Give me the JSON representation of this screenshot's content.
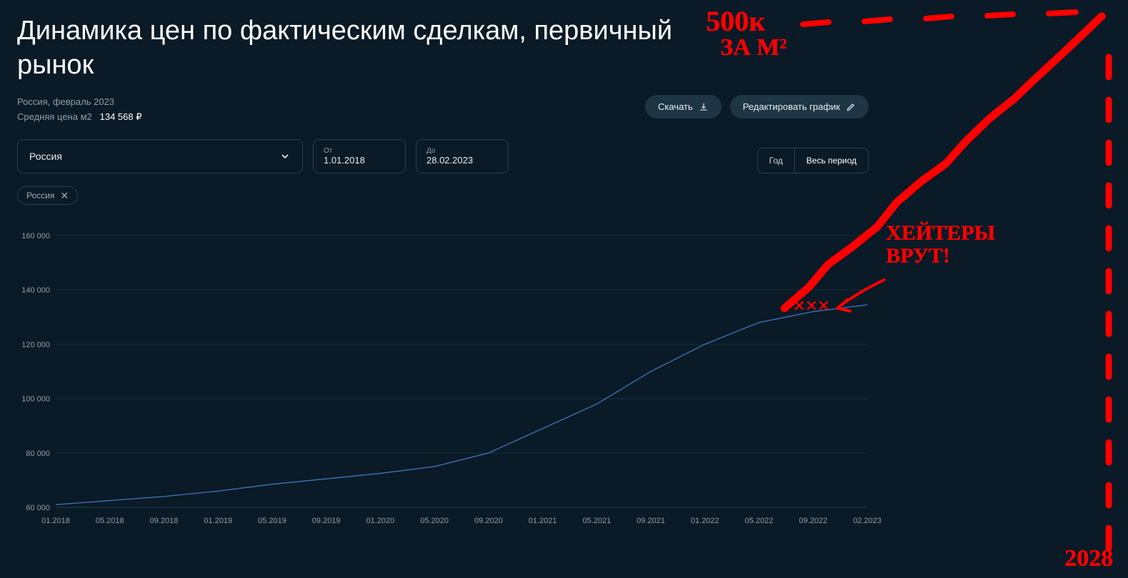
{
  "header": {
    "title": "Динамика цен по фактическим сделкам, первичный рынок",
    "region_line": "Россия, февраль 2023",
    "price_label": "Средняя цена м2",
    "price_value": "134 568 ₽"
  },
  "buttons": {
    "download": "Скачать",
    "edit_chart": "Редактировать график"
  },
  "controls": {
    "region_select": "Россия",
    "date_from_label": "От",
    "date_from": "1.01.2018",
    "date_to_label": "До",
    "date_to": "28.02.2023",
    "seg_year": "Год",
    "seg_all": "Весь период",
    "chip_region": "Россия"
  },
  "chart": {
    "type": "line",
    "background_color": "#0a1a26",
    "grid_color": "#1a2e3c",
    "axis_label_color": "#8aa0b2",
    "axis_fontsize": 11,
    "line_color": "#3b6fb8",
    "line_width": 1.4,
    "ylim": [
      60000,
      165000
    ],
    "yticks": [
      60000,
      80000,
      100000,
      120000,
      140000,
      160000
    ],
    "ytick_labels": [
      "60 000",
      "80 000",
      "100 000",
      "120 000",
      "140 000",
      "160 000"
    ],
    "xtick_labels": [
      "01.2018",
      "05.2018",
      "09.2018",
      "01.2019",
      "05.2019",
      "09.2019",
      "01.2020",
      "05.2020",
      "09.2020",
      "01.2021",
      "05.2021",
      "09.2021",
      "01.2022",
      "05.2022",
      "09.2022",
      "02.2023"
    ],
    "series": {
      "x_index": [
        0,
        1,
        2,
        3,
        4,
        5,
        6,
        7,
        8,
        9,
        10,
        11,
        12,
        13,
        14,
        15
      ],
      "y": [
        61000,
        62500,
        64000,
        66000,
        68500,
        70500,
        72500,
        75000,
        80000,
        89000,
        98000,
        110000,
        120000,
        128000,
        132000,
        134500
      ]
    }
  },
  "annotations": {
    "color": "#ff0000",
    "top_text_1": "500к",
    "top_text_2": "ЗА М²",
    "haters_text_1": "ХЕЙТЕРЫ",
    "haters_text_2": "ВРУТ!",
    "xxx_text": "×××",
    "year_text": "2028",
    "dash_segments": 12,
    "projection_start": [
      1098,
      432
    ],
    "projection_end": [
      1545,
      22
    ]
  }
}
